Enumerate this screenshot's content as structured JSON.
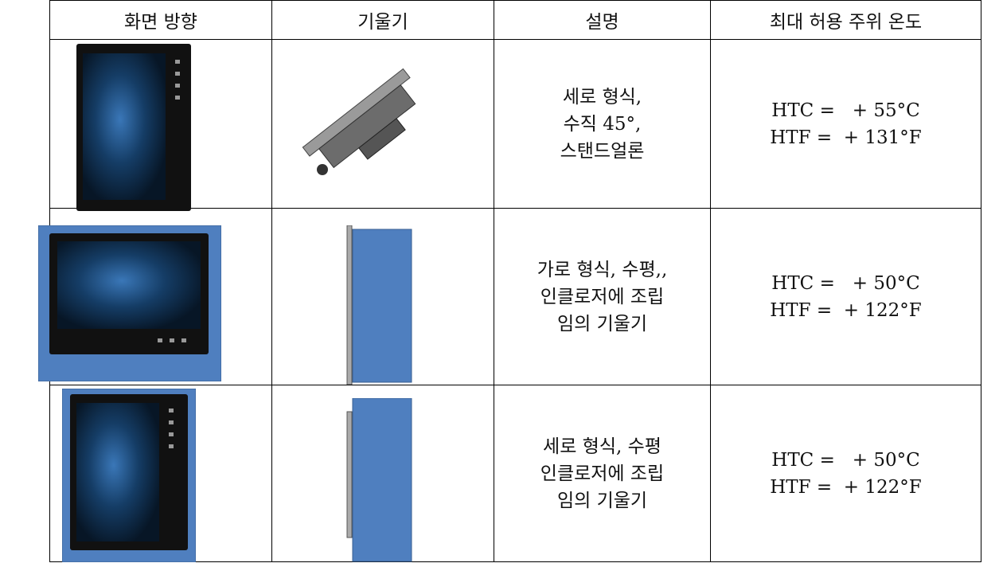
{
  "table": {
    "header": [
      "화면 방향",
      "기울기",
      "설명",
      "최대 허용 주위 온도"
    ],
    "rows": [
      {
        "description": [
          "세로 형식,",
          "수직 45°,",
          "스탠드얼론"
        ],
        "temperature": [
          "HTC =   + 55°C",
          "HTF =  + 131°F"
        ]
      },
      {
        "description": [
          "가로 형식, 수평,,",
          "인클로저에 조립",
          "임의 기울기"
        ],
        "temperature": [
          "HTC =   + 50°C",
          "HTF =  + 122°F"
        ]
      },
      {
        "description": [
          "세로 형식, 수평",
          "인클로저에 조립",
          "임의 기울기"
        ],
        "temperature": [
          "HTC =   + 50°C",
          "HTF =  + 122°F"
        ]
      }
    ]
  }
}
